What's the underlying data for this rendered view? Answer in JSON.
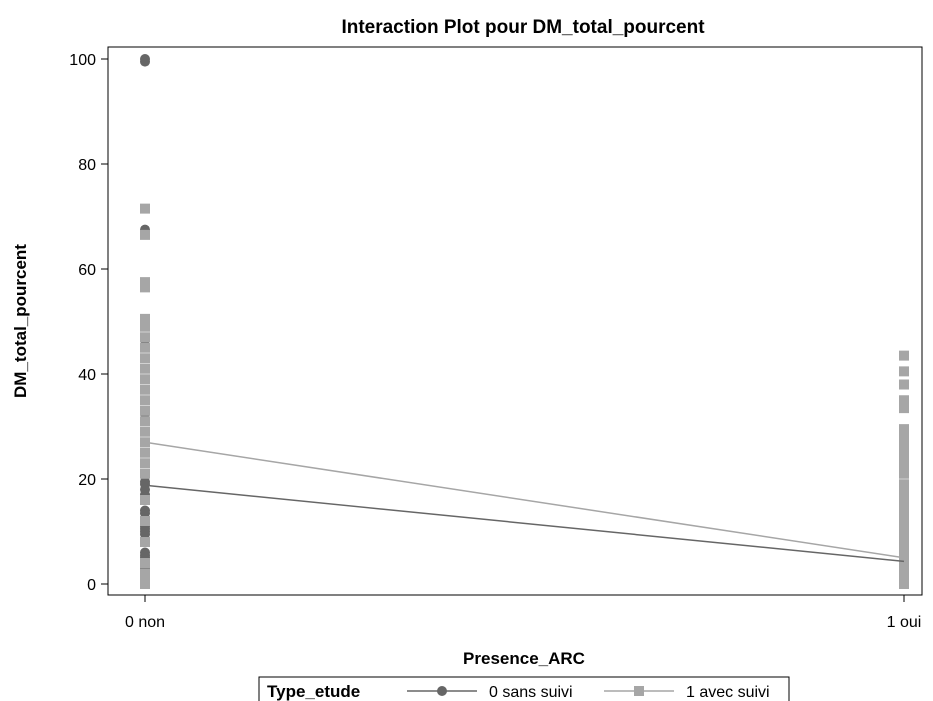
{
  "chart_data": {
    "type": "scatter",
    "title": "Interaction Plot pour DM_total_pourcent",
    "xlabel": "Presence_ARC",
    "ylabel": "DM_total_pourcent",
    "categories": [
      "0 non",
      "1 oui"
    ],
    "ylim": [
      0,
      100
    ],
    "yticks": [
      0,
      20,
      40,
      60,
      80,
      100
    ],
    "grid": false,
    "legend": {
      "title": "Type_etude",
      "placement": "bottom"
    },
    "series": [
      {
        "name": "0 sans suivi",
        "marker": "circle",
        "color": "#666666",
        "points": {
          "0 non": [
            100,
            99.5,
            67.5,
            67,
            45.5,
            32.5,
            19.5,
            19,
            18,
            17,
            14,
            13.5,
            11,
            10.5,
            10,
            9.5,
            6,
            5.5,
            5,
            4.5,
            3.5,
            3,
            2.5,
            2,
            1.5
          ],
          "1 oui": [
            9,
            8.5,
            8,
            7.5,
            7,
            6.5,
            6,
            5.5,
            5,
            4.5,
            0.5,
            0
          ]
        },
        "line": [
          18.8,
          4.3
        ]
      },
      {
        "name": "1 avec suivi",
        "marker": "square",
        "color": "#a6a6a6",
        "points": {
          "0 non": [
            71.5,
            66.5,
            57.5,
            56.5,
            50.5,
            49,
            47,
            45,
            43,
            41,
            39,
            37,
            35,
            33,
            31,
            29,
            27,
            25,
            23,
            21,
            16,
            12,
            8,
            4,
            2,
            0.5,
            0
          ],
          "1 oui": [
            43.5,
            40.5,
            38,
            35,
            33.5,
            29.5,
            28.5,
            27,
            25.5,
            24,
            22.5,
            21,
            19,
            17.5,
            16,
            14.5,
            13,
            11.5,
            10,
            8.5,
            7,
            5.5,
            4,
            2.5,
            1,
            0
          ]
        },
        "line": [
          27,
          5
        ]
      }
    ]
  }
}
